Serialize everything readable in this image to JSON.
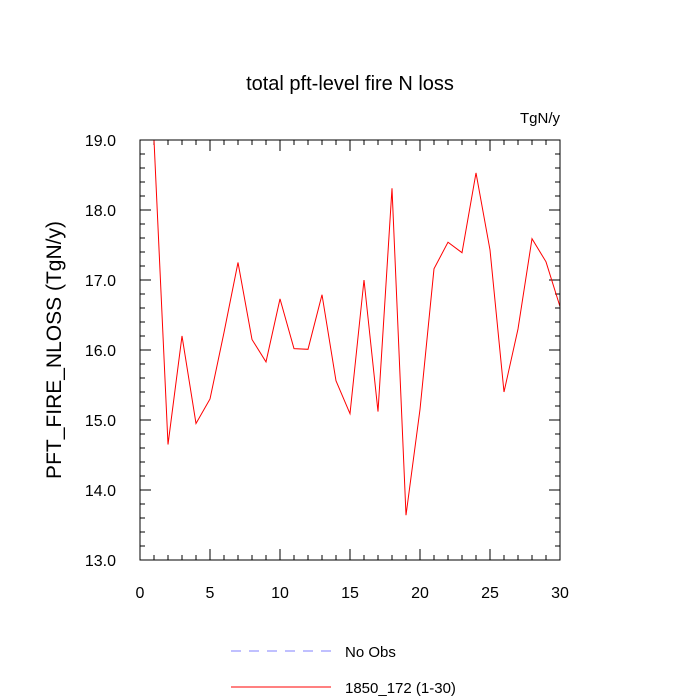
{
  "chart_data": {
    "type": "line",
    "title": "total pft-level fire N loss",
    "units": "TgN/y",
    "xlabel": "",
    "ylabel": "PFT_FIRE_NLOSS  (TgN/y)",
    "xlim": [
      0,
      30
    ],
    "ylim": [
      13.0,
      19.0
    ],
    "x_ticks": [
      0,
      5,
      10,
      15,
      20,
      25,
      30
    ],
    "x_tick_labels": [
      "0",
      "5",
      "10",
      "15",
      "20",
      "25",
      "30"
    ],
    "y_ticks": [
      13.0,
      14.0,
      15.0,
      16.0,
      17.0,
      18.0,
      19.0
    ],
    "y_tick_labels": [
      "13.0",
      "14.0",
      "15.0",
      "16.0",
      "17.0",
      "18.0",
      "19.0"
    ],
    "grid": false,
    "legend_position": "bottom",
    "series": [
      {
        "name": "No Obs",
        "color": "#8080ff",
        "dash": "dashed",
        "x": [],
        "values": []
      },
      {
        "name": "1850_172 (1-30)",
        "color": "#ff0000",
        "dash": "solid",
        "x": [
          1,
          2,
          3,
          4,
          5,
          6,
          7,
          8,
          9,
          10,
          11,
          12,
          13,
          14,
          15,
          16,
          17,
          18,
          19,
          20,
          21,
          22,
          23,
          24,
          25,
          26,
          27,
          28,
          29,
          30
        ],
        "values": [
          19.0,
          14.65,
          16.2,
          14.95,
          15.3,
          16.25,
          17.25,
          16.15,
          15.83,
          16.73,
          16.02,
          16.01,
          16.79,
          15.56,
          15.09,
          17.0,
          15.12,
          18.31,
          13.64,
          15.15,
          17.16,
          17.54,
          17.39,
          18.53,
          17.43,
          15.4,
          16.3,
          17.59,
          17.26,
          16.62
        ]
      }
    ]
  }
}
